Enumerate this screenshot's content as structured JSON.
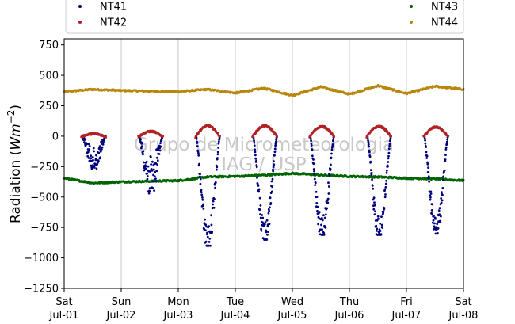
{
  "chart_data": {
    "type": "scatter",
    "ylabel": "Radiation (Wm^-2)",
    "ylim": [
      -1250,
      800
    ],
    "yticks": [
      -1250,
      -1000,
      -750,
      -500,
      -250,
      0,
      250,
      500,
      750
    ],
    "xlim": [
      "2023-07-01",
      "2023-07-08"
    ],
    "xticks": [
      {
        "day": "Sat",
        "date": "Jul-01"
      },
      {
        "day": "Sun",
        "date": "Jul-02"
      },
      {
        "day": "Mon",
        "date": "Jul-03"
      },
      {
        "day": "Tue",
        "date": "Jul-04"
      },
      {
        "day": "Wed",
        "date": "Jul-05"
      },
      {
        "day": "Thu",
        "date": "Jul-06"
      },
      {
        "day": "Fri",
        "date": "Jul-07"
      },
      {
        "day": "Sat",
        "date": "Jul-08"
      }
    ],
    "grid": "vertical",
    "legend": {
      "placement": "top",
      "ncol": 2
    },
    "watermark": [
      "Grupo de Micrometeorologia",
      "IAG / USP"
    ],
    "series": [
      {
        "name": "NT41",
        "color": "#00007f",
        "daily_minimum": [
          {
            "date": "2023-07-01",
            "min": -270
          },
          {
            "date": "2023-07-02",
            "min": -470
          },
          {
            "date": "2023-07-03",
            "min": -900
          },
          {
            "date": "2023-07-04",
            "min": -850
          },
          {
            "date": "2023-07-05",
            "min": -810
          },
          {
            "date": "2023-07-06",
            "min": -810
          },
          {
            "date": "2023-07-07",
            "min": -800
          }
        ]
      },
      {
        "name": "NT42",
        "color": "#b22222",
        "daily_maximum": [
          {
            "date": "2023-07-01",
            "max": 20
          },
          {
            "date": "2023-07-02",
            "max": 40
          },
          {
            "date": "2023-07-03",
            "max": 85
          },
          {
            "date": "2023-07-04",
            "max": 85
          },
          {
            "date": "2023-07-05",
            "max": 80
          },
          {
            "date": "2023-07-06",
            "max": 80
          },
          {
            "date": "2023-07-07",
            "max": 75
          }
        ]
      },
      {
        "name": "NT43",
        "color": "#006400",
        "points": [
          {
            "x": "2023-07-01T00:00",
            "y": -345
          },
          {
            "x": "2023-07-01T12:00",
            "y": -385
          },
          {
            "x": "2023-07-02T00:00",
            "y": -375
          },
          {
            "x": "2023-07-02T12:00",
            "y": -370
          },
          {
            "x": "2023-07-03T00:00",
            "y": -365
          },
          {
            "x": "2023-07-03T12:00",
            "y": -335
          },
          {
            "x": "2023-07-04T00:00",
            "y": -330
          },
          {
            "x": "2023-07-04T12:00",
            "y": -320
          },
          {
            "x": "2023-07-05T00:00",
            "y": -305
          },
          {
            "x": "2023-07-05T12:00",
            "y": -320
          },
          {
            "x": "2023-07-06T00:00",
            "y": -330
          },
          {
            "x": "2023-07-06T12:00",
            "y": -335
          },
          {
            "x": "2023-07-07T00:00",
            "y": -345
          },
          {
            "x": "2023-07-07T12:00",
            "y": -350
          },
          {
            "x": "2023-07-08T00:00",
            "y": -365
          }
        ]
      },
      {
        "name": "NT44",
        "color": "#b8860b",
        "points": [
          {
            "x": "2023-07-01T00:00",
            "y": 365
          },
          {
            "x": "2023-07-01T12:00",
            "y": 385
          },
          {
            "x": "2023-07-02T00:00",
            "y": 375
          },
          {
            "x": "2023-07-02T12:00",
            "y": 370
          },
          {
            "x": "2023-07-03T00:00",
            "y": 365
          },
          {
            "x": "2023-07-03T12:00",
            "y": 385
          },
          {
            "x": "2023-07-04T00:00",
            "y": 355
          },
          {
            "x": "2023-07-04T12:00",
            "y": 395
          },
          {
            "x": "2023-07-05T00:00",
            "y": 335
          },
          {
            "x": "2023-07-05T12:00",
            "y": 405
          },
          {
            "x": "2023-07-06T00:00",
            "y": 345
          },
          {
            "x": "2023-07-06T12:00",
            "y": 415
          },
          {
            "x": "2023-07-07T00:00",
            "y": 350
          },
          {
            "x": "2023-07-07T12:00",
            "y": 410
          },
          {
            "x": "2023-07-08T00:00",
            "y": 385
          }
        ]
      }
    ]
  }
}
